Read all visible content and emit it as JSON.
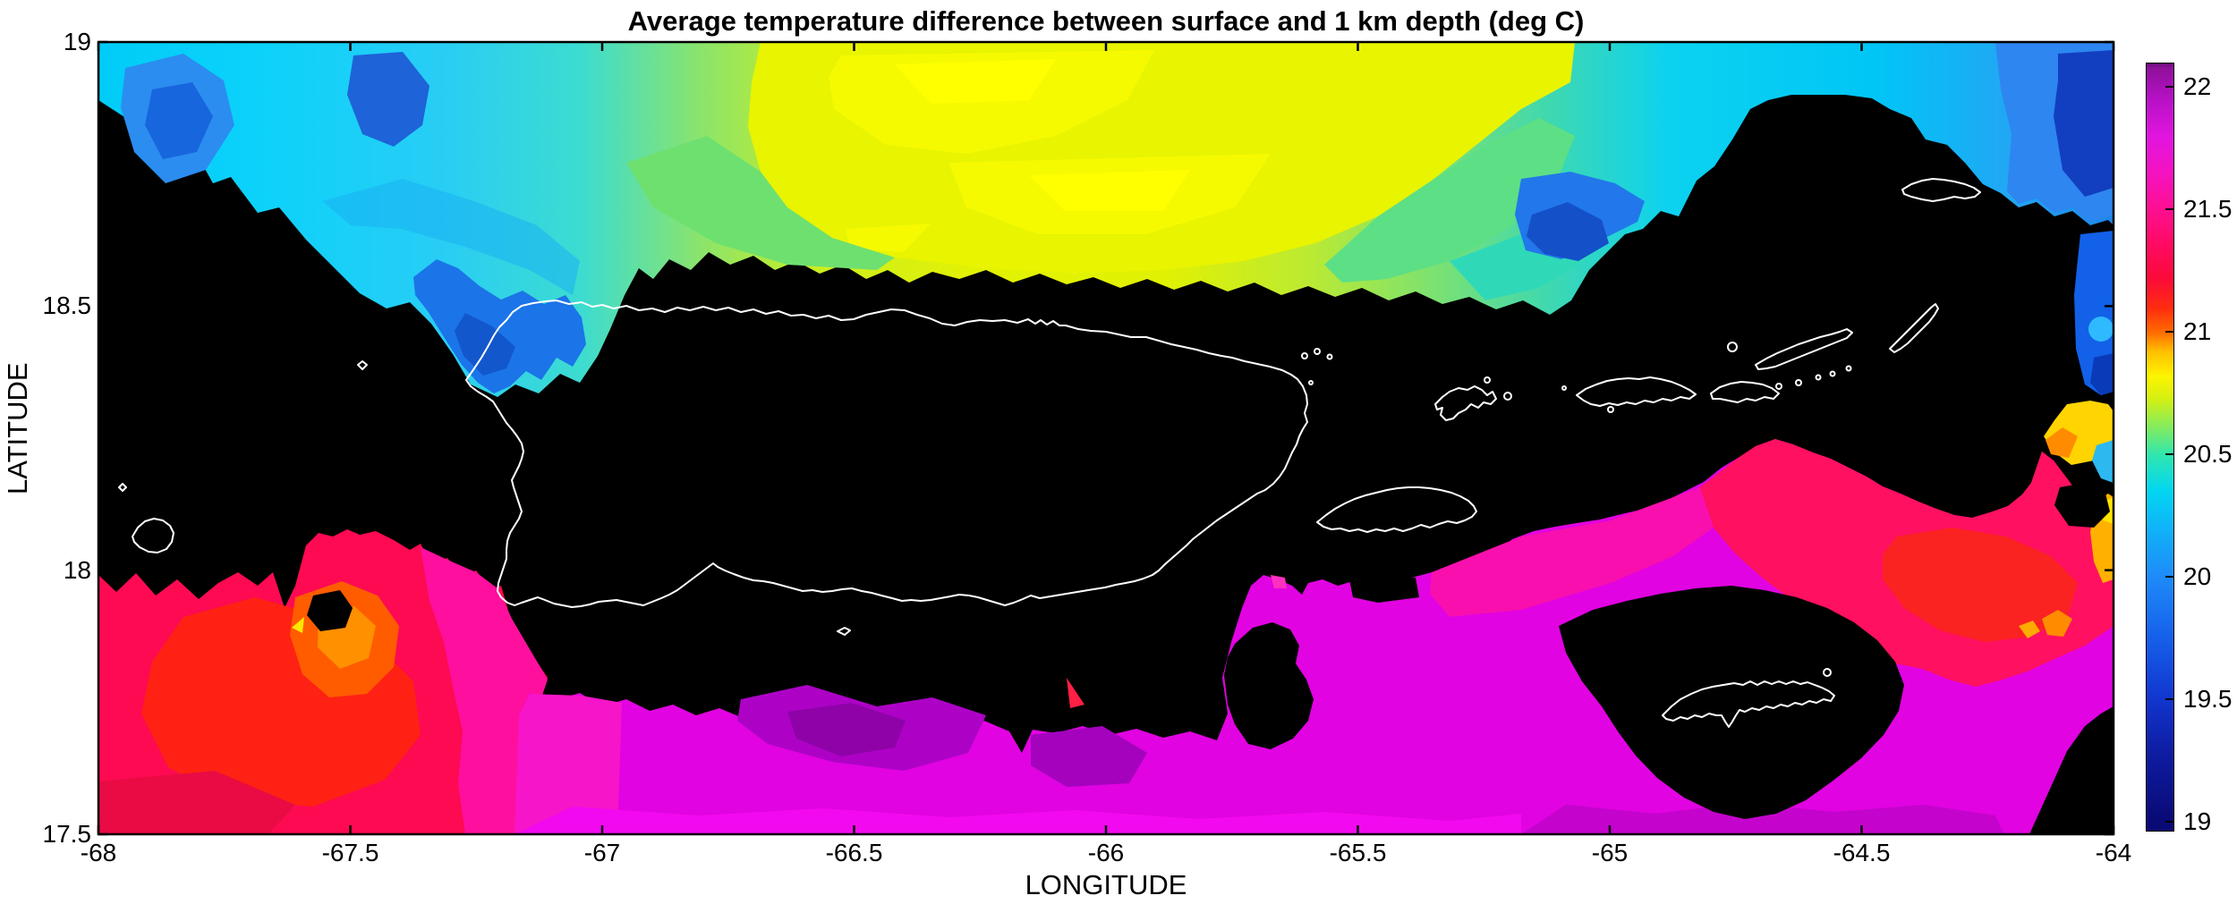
{
  "figure": {
    "title": "Average temperature difference between surface and 1 km depth (deg C)",
    "xlabel": "LONGITUDE",
    "ylabel": "LATITUDE"
  },
  "chart_data": {
    "type": "heatmap",
    "subtype": "filled-contour-geographic-map",
    "title": "Average temperature difference between surface and 1 km depth (deg C)",
    "xlabel": "LONGITUDE",
    "ylabel": "LATITUDE",
    "xlim": [
      -68,
      -64
    ],
    "ylim": [
      17.5,
      19
    ],
    "x_ticks": [
      -68,
      -67.5,
      -67,
      -66.5,
      -66,
      -65.5,
      -65,
      -64.5,
      -64
    ],
    "x_tick_labels": [
      "-68",
      "-67.5",
      "-67",
      "-66.5",
      "-66",
      "-65.5",
      "-65",
      "-64.5",
      "-64"
    ],
    "y_ticks": [
      19,
      18.5,
      18,
      17.5
    ],
    "y_tick_labels": [
      "19",
      "18.5",
      "18",
      "17.5"
    ],
    "grid": false,
    "masked_no_data_color": "#000000",
    "coastline_color": "#ffffff",
    "coastlines_outlined": [
      "Puerto Rico",
      "Mona",
      "Monito",
      "Desecheo",
      "Caja de Muertos",
      "Vieques",
      "Culebra",
      "St. Thomas",
      "St. John",
      "Tortola",
      "Jost Van Dyke",
      "Virgin Gorda",
      "Anegada",
      "St. Croix",
      "Buck Island"
    ],
    "colorbar": {
      "ticks": [
        22,
        21.5,
        21,
        20.5,
        20,
        19.5,
        19
      ],
      "tick_labels": [
        "22",
        "21.5",
        "21",
        "20.5",
        "20",
        "19.5",
        "19"
      ],
      "range": [
        18.96,
        22.1
      ],
      "stops": [
        [
          19.0,
          "#0a0a76"
        ],
        [
          19.3,
          "#0e1ea6"
        ],
        [
          19.5,
          "#1136ce"
        ],
        [
          19.75,
          "#1660ea"
        ],
        [
          20.0,
          "#1e8bf8"
        ],
        [
          20.2,
          "#0fb4f8"
        ],
        [
          20.35,
          "#02d6f2"
        ],
        [
          20.5,
          "#30e6ae"
        ],
        [
          20.62,
          "#8aec58"
        ],
        [
          20.73,
          "#d6f012"
        ],
        [
          20.82,
          "#fdf400"
        ],
        [
          20.92,
          "#ffc000"
        ],
        [
          21.0,
          "#ff6a00"
        ],
        [
          21.1,
          "#ff2b10"
        ],
        [
          21.22,
          "#fb0a3a"
        ],
        [
          21.35,
          "#ff0a60"
        ],
        [
          21.5,
          "#fd0f8f"
        ],
        [
          21.65,
          "#f512c0"
        ],
        [
          21.8,
          "#e215e0"
        ],
        [
          21.95,
          "#b811c6"
        ],
        [
          22.08,
          "#8f109b"
        ],
        [
          22.1,
          "#690c72"
        ]
      ]
    },
    "regions": [
      {
        "area": "Atlantic band north of islands",
        "lon": [
          -67.9,
          -64.6
        ],
        "lat": [
          18.55,
          19.0
        ],
        "value_degC": [
          19.8,
          20.8
        ],
        "pattern": "cyan at the edges grading to a yellow-green / yellow core centred near -66.3 to -65.7"
      },
      {
        "area": "northwest corner patches",
        "lon": [
          -68.0,
          -67.3
        ],
        "lat": [
          18.7,
          19.0
        ],
        "value_degC": [
          19.8,
          20.2
        ],
        "pattern": "cyan with blue blobs"
      },
      {
        "area": "blue tongue near -67.1",
        "lon": [
          -67.35,
          -66.95
        ],
        "lat": [
          18.3,
          18.65
        ],
        "value_degC": [
          19.6,
          20.0
        ]
      },
      {
        "area": "northeast corner",
        "lon": [
          -64.25,
          -64.0
        ],
        "lat": [
          18.6,
          19.0
        ],
        "value_degC": [
          19.2,
          19.7
        ],
        "pattern": "medium to dark blue"
      },
      {
        "area": "right-edge anomaly east of Virgin Gorda",
        "lon": [
          -64.12,
          -64.0
        ],
        "lat": [
          18.15,
          18.55
        ],
        "value_degC": [
          19.6,
          21.0
        ],
        "pattern": "stacked blue / cyan / yellow / orange pocket"
      },
      {
        "area": "Mona Passage southwest",
        "lon": [
          -68.0,
          -67.1
        ],
        "lat": [
          17.5,
          18.05
        ],
        "value_degC": [
          20.8,
          21.4
        ],
        "pattern": "crimson-red with orange-red spots near -67.4, 18.0 and one yellow speck"
      },
      {
        "area": "Caribbean south-central",
        "lon": [
          -67.1,
          -65.55
        ],
        "lat": [
          17.5,
          17.95
        ],
        "value_degC": [
          21.5,
          21.95
        ],
        "pattern": "magenta with darker purple patches"
      },
      {
        "area": "southeast around St. Croix",
        "lon": [
          -65.55,
          -64.0
        ],
        "lat": [
          17.5,
          18.35
        ],
        "value_degC": [
          21.2,
          21.6
        ],
        "pattern": "magenta-pink; red band 21.0-21.2 northeast of St. Croix with small orange spots"
      },
      {
        "area": "land / no-data mask",
        "value_degC": null,
        "pattern": "black, with white coastline outlines"
      }
    ]
  }
}
